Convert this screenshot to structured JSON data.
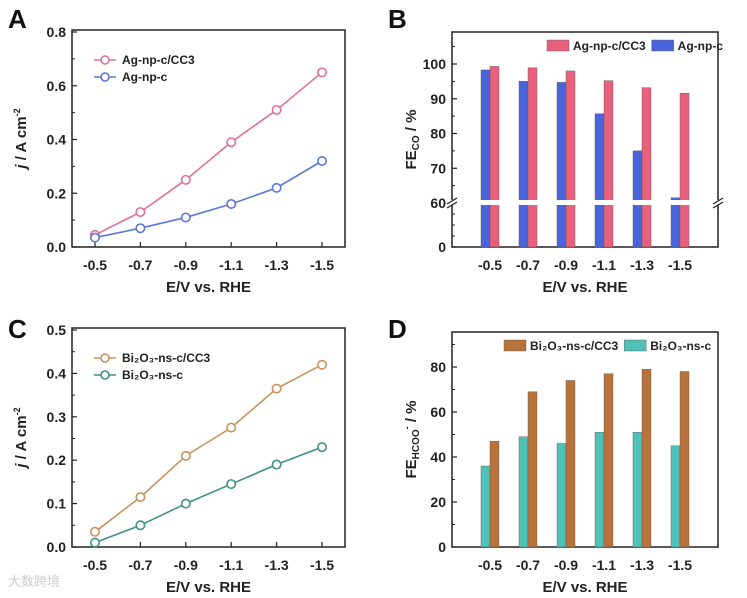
{
  "watermark": "大数跨境",
  "chart_data": [
    {
      "panel": "A",
      "type": "line",
      "x": [
        "-0.5",
        "-0.7",
        "-0.9",
        "-1.1",
        "-1.3",
        "-1.5"
      ],
      "xlabel": "E/V vs. RHE",
      "ylabel": {
        "main": "j / A cm",
        "sup": "-2"
      },
      "ylim": [
        0,
        0.8
      ],
      "yticks": [
        "0.0",
        "0.2",
        "0.4",
        "0.6",
        "0.8"
      ],
      "legend_position": "top-left",
      "series": [
        {
          "name": "Ag-np-c/CC3",
          "color": "#e0709a",
          "values": [
            0.045,
            0.13,
            0.25,
            0.39,
            0.51,
            0.65
          ]
        },
        {
          "name": "Ag-np-c",
          "color": "#5b78d8",
          "values": [
            0.035,
            0.07,
            0.11,
            0.16,
            0.22,
            0.32
          ]
        }
      ]
    },
    {
      "panel": "B",
      "type": "bar",
      "categories": [
        "-0.5",
        "-0.7",
        "-0.9",
        "-1.1",
        "-1.3",
        "-1.5"
      ],
      "xlabel": "E/V vs. RHE",
      "ylabel": {
        "main": "FE",
        "sub": "CO",
        "tail": " / %"
      },
      "ylim": [
        0,
        105
      ],
      "axis_break": 60,
      "yticks": [
        "0",
        "60",
        "70",
        "80",
        "90",
        "100"
      ],
      "legend_position": "top-right",
      "series": [
        {
          "name": "Ag-np-c",
          "color": "#4a64dc",
          "values": [
            98.3,
            95.0,
            94.7,
            85.7,
            75.0,
            61.5
          ]
        },
        {
          "name": "Ag-np-c/CC3",
          "color": "#e8607c",
          "values": [
            99.3,
            98.9,
            98.0,
            95.2,
            93.2,
            91.6
          ]
        }
      ],
      "legend_order": [
        1,
        0
      ]
    },
    {
      "panel": "C",
      "type": "line",
      "x": [
        "-0.5",
        "-0.7",
        "-0.9",
        "-1.1",
        "-1.3",
        "-1.5"
      ],
      "xlabel": "E/V vs. RHE",
      "ylabel": {
        "main": "j / A cm",
        "sup": "-2"
      },
      "ylim": [
        0,
        0.5
      ],
      "yticks": [
        "0.0",
        "0.1",
        "0.2",
        "0.3",
        "0.4",
        "0.5"
      ],
      "legend_position": "top-left",
      "series": [
        {
          "name": "Bi₂O₃-ns-c/CC3",
          "color": "#c8935a",
          "values": [
            0.035,
            0.115,
            0.21,
            0.275,
            0.365,
            0.42
          ]
        },
        {
          "name": "Bi₂O₃-ns-c",
          "color": "#3e9088",
          "values": [
            0.01,
            0.05,
            0.1,
            0.145,
            0.19,
            0.23
          ]
        }
      ]
    },
    {
      "panel": "D",
      "type": "bar",
      "categories": [
        "-0.5",
        "-0.7",
        "-0.9",
        "-1.1",
        "-1.3",
        "-1.5"
      ],
      "xlabel": "E/V vs. RHE",
      "ylabel": {
        "main": "FE",
        "sub": "HCOO",
        "sup": "-",
        "tail": " / %"
      },
      "ylim": [
        0,
        95
      ],
      "yticks": [
        "0",
        "20",
        "40",
        "60",
        "80"
      ],
      "legend_position": "top",
      "series": [
        {
          "name": "Bi₂O₃-ns-c",
          "color": "#4ec2b8",
          "values": [
            36,
            49,
            46,
            51,
            51,
            45
          ]
        },
        {
          "name": "Bi₂O₃-ns-c/CC3",
          "color": "#b8723c",
          "values": [
            47,
            69,
            74,
            77,
            79,
            78
          ]
        }
      ],
      "legend_order": [
        1,
        0
      ]
    }
  ]
}
